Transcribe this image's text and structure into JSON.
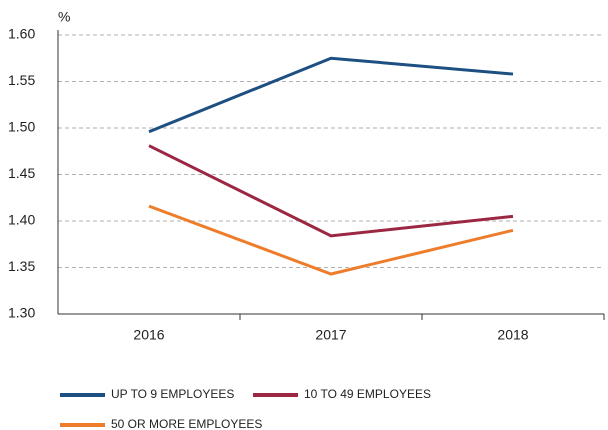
{
  "chart_data": {
    "type": "line",
    "y_label": "%",
    "categories": [
      "2016",
      "2017",
      "2018"
    ],
    "series": [
      {
        "name": "UP TO 9 EMPLOYEES",
        "color": "#1d4f82",
        "values": [
          1.496,
          1.575,
          1.558
        ]
      },
      {
        "name": "10 TO 49 EMPLOYEES",
        "color": "#9b2743",
        "values": [
          1.481,
          1.384,
          1.405
        ]
      },
      {
        "name": "50 OR MORE EMPLOYEES",
        "color": "#ee7d2b",
        "values": [
          1.416,
          1.343,
          1.39
        ]
      }
    ],
    "ylim": [
      1.3,
      1.6
    ],
    "yticks": [
      {
        "value": 1.3,
        "label": "1.30"
      },
      {
        "value": 1.35,
        "label": "1.35"
      },
      {
        "value": 1.4,
        "label": "1.40"
      },
      {
        "value": 1.45,
        "label": "1.45"
      },
      {
        "value": 1.5,
        "label": "1.50"
      },
      {
        "value": 1.55,
        "label": "1.55"
      },
      {
        "value": 1.6,
        "label": "1.60"
      }
    ],
    "grid": true,
    "legend": "bottom"
  }
}
